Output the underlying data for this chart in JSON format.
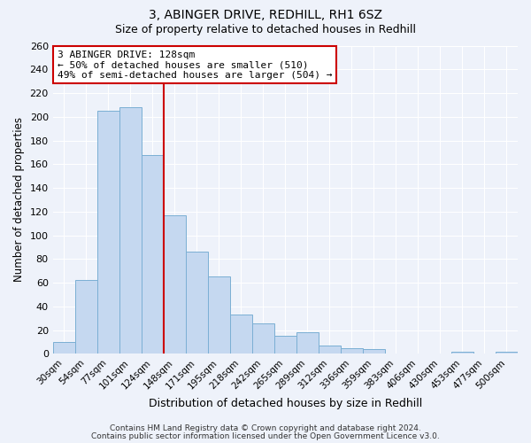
{
  "title1": "3, ABINGER DRIVE, REDHILL, RH1 6SZ",
  "title2": "Size of property relative to detached houses in Redhill",
  "xlabel": "Distribution of detached houses by size in Redhill",
  "ylabel": "Number of detached properties",
  "footer1": "Contains HM Land Registry data © Crown copyright and database right 2024.",
  "footer2": "Contains public sector information licensed under the Open Government Licence v3.0.",
  "bar_labels": [
    "30sqm",
    "54sqm",
    "77sqm",
    "101sqm",
    "124sqm",
    "148sqm",
    "171sqm",
    "195sqm",
    "218sqm",
    "242sqm",
    "265sqm",
    "289sqm",
    "312sqm",
    "336sqm",
    "359sqm",
    "383sqm",
    "406sqm",
    "430sqm",
    "453sqm",
    "477sqm",
    "500sqm"
  ],
  "bar_values": [
    10,
    62,
    205,
    208,
    168,
    117,
    86,
    65,
    33,
    26,
    15,
    18,
    7,
    5,
    4,
    0,
    0,
    0,
    2,
    0,
    2
  ],
  "bar_color": "#c5d8f0",
  "bar_edge_color": "#7bafd4",
  "ref_line_color": "#cc0000",
  "annotation_title": "3 ABINGER DRIVE: 128sqm",
  "annotation_line1": "← 50% of detached houses are smaller (510)",
  "annotation_line2": "49% of semi-detached houses are larger (504) →",
  "annotation_box_color": "white",
  "annotation_box_edge": "#cc0000",
  "ylim": [
    0,
    260
  ],
  "yticks": [
    0,
    20,
    40,
    60,
    80,
    100,
    120,
    140,
    160,
    180,
    200,
    220,
    240,
    260
  ],
  "background_color": "#eef2fa",
  "grid_color": "white",
  "title1_fontsize": 10,
  "title2_fontsize": 9
}
